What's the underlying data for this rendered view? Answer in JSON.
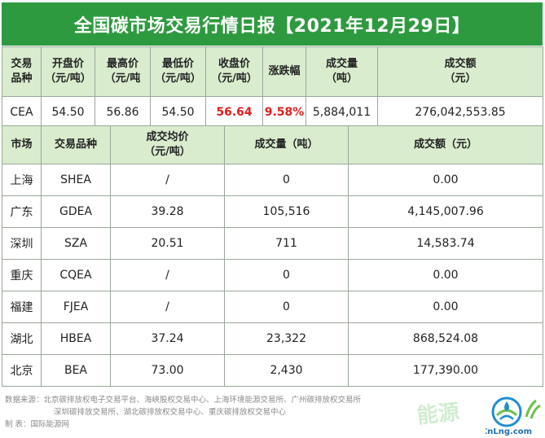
{
  "title": "全国碳市场交易行情日报【2021年12月29日】",
  "summary": {
    "headers": [
      [
        "交易",
        "品种"
      ],
      [
        "开盘价",
        "（元/吨）"
      ],
      [
        "最高价",
        "（元/吨"
      ],
      [
        "最低价",
        "（元/吨）"
      ],
      [
        "收盘价",
        "（元/吨）"
      ],
      [
        "涨跌幅",
        ""
      ],
      [
        "成交量",
        "（吨）"
      ],
      [
        "成交额",
        "（元）"
      ]
    ],
    "row": [
      "CEA",
      "54.50",
      "56.86",
      "54.50",
      "56.64",
      "9.58%",
      "5,884,011",
      "276,042,553.85"
    ]
  },
  "regional": {
    "headers": [
      [
        "市场",
        ""
      ],
      [
        "交易品种",
        ""
      ],
      [
        "成交均价",
        "（元/吨）"
      ],
      [
        "成交量（吨）",
        ""
      ],
      [
        "成交额（元）",
        ""
      ]
    ],
    "rows": [
      [
        "上海",
        "SHEA",
        "/",
        "0",
        "0.00"
      ],
      [
        "广东",
        "GDEA",
        "39.28",
        "105,516",
        "4,145,007.96"
      ],
      [
        "深圳",
        "SZA",
        "20.51",
        "711",
        "14,583.74"
      ],
      [
        "重庆",
        "CQEA",
        "/",
        "0",
        "0.00"
      ],
      [
        "福建",
        "FJEA",
        "/",
        "0",
        "0.00"
      ],
      [
        "湖北",
        "HBEA",
        "37.24",
        "23,322",
        "868,524.08"
      ],
      [
        "北京",
        "BEA",
        "73.00",
        "2,430",
        "177,390.00"
      ]
    ]
  },
  "footer": {
    "source_line1": "数据来源：北京碳排放权电子交易平台、海峡股权交易中心、上海环境能源交易所、广州碳排放权交易所",
    "source_line2": "深圳碳排放交易所、湖北碳排放权交易中心、重庆碳排放权交易中心",
    "maker": "制    表：国际能源网"
  },
  "watermark": {
    "text": "能源",
    "logo_text": "CnLng.com"
  },
  "colors": {
    "title_bg": "#2e9a3f",
    "header_bg": "#d9ecce",
    "highlight": "#e02020"
  }
}
